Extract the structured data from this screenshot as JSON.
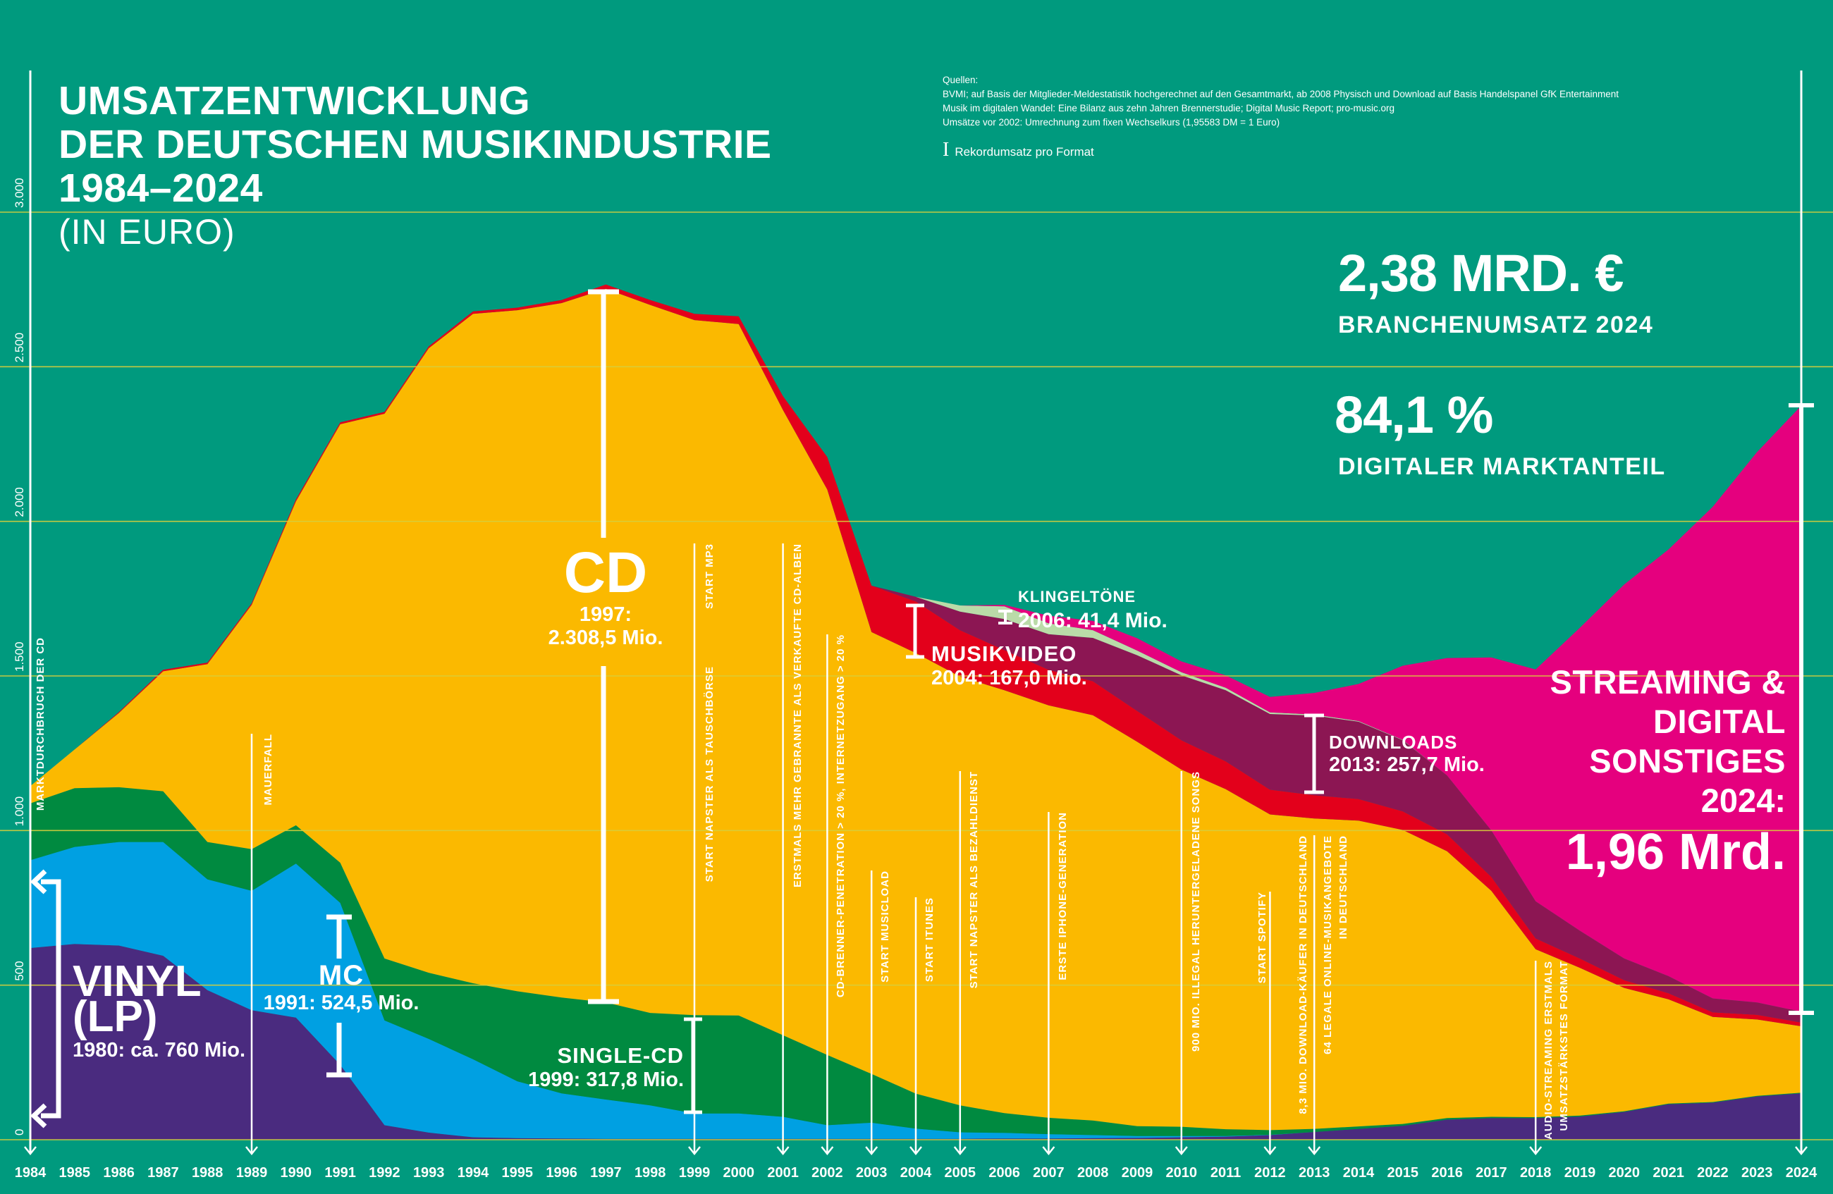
{
  "title": {
    "line1": "UMSATZENTWICKLUNG",
    "line2": "DER DEUTSCHEN MUSIKINDUSTRIE",
    "line3": "1984–2024",
    "unit": "(IN EURO)"
  },
  "sources": {
    "heading": "Quellen:",
    "line1": "BVMI; auf Basis der Mitglieder-Meldestatistik hochgerechnet auf den Gesamtmarkt, ab 2008 Physisch und Download auf Basis Handelspanel GfK Entertainment",
    "line2": "Musik im digitalen Wandel: Eine Bilanz aus zehn Jahren Brennerstudie; Digital Music Report; pro-music.org",
    "line3": "Umsätze vor 2002: Umrechnung zum fixen Wechselkurs (1,95583 DM = 1 Euro)"
  },
  "legend": {
    "record_label": "Rekordumsatz pro Format"
  },
  "kpis": {
    "revenue_value": "2,38 MRD. €",
    "revenue_label": "BRANCHENUMSATZ 2024",
    "digital_share_value": "84,1 %",
    "digital_share_label": "DIGITALER MARKTANTEIL"
  },
  "annotations": {
    "vinyl": "1980: ca. 760 Mio.",
    "mc": "1991: 524,5 Mio.",
    "single": "1999: 317,8 Mio.",
    "cd_year": "1997:",
    "cd_value": "2.308,5 Mio.",
    "video": "2004: 167,0 Mio.",
    "ringtones": "2006: 41,4 Mio.",
    "downloads": "2013: 257,7 Mio.",
    "streaming_year": "2024:",
    "streaming_value": "1,96 Mrd."
  },
  "events": [
    {
      "year": 1984,
      "text": "MARKTDURCHBRUCH DER CD"
    },
    {
      "year": 1989,
      "text": "MAUERFALL"
    },
    {
      "year": 1999,
      "text": "START MP3"
    },
    {
      "year": 1999,
      "text": "START NAPSTER ALS TAUSCHBÖRSE"
    },
    {
      "year": 2001,
      "text": "ERSTMALS MEHR GEBRANNTE ALS VERKAUFTE CD-ALBEN"
    },
    {
      "year": 2002,
      "text": "CD-BRENNER-PENETRATION > 20 %, INTERNETZUGANG > 20 %"
    },
    {
      "year": 2003,
      "text": "START MUSICLOAD"
    },
    {
      "year": 2004,
      "text": "START ITUNES"
    },
    {
      "year": 2005,
      "text": "START NAPSTER ALS BEZAHLDIENST"
    },
    {
      "year": 2007,
      "text": "ERSTE IPHONE-GENERATION"
    },
    {
      "year": 2010,
      "text": "900 MIO. ILLEGAL HERUNTERGELADENE SONGS"
    },
    {
      "year": 2012,
      "text": "START SPOTIFY"
    },
    {
      "year": 2013,
      "text": "8,3 MIO. DOWNLOAD-KÄUFER IN DEUTSCHLAND"
    },
    {
      "year": 2013,
      "text": "64 LEGALE ONLINE-MUSIKANGEBOTE",
      "text2": "IN DEUTSCHLAND"
    },
    {
      "year": 2018,
      "text": "AUDIO-STREAMING ERSTMALS",
      "text2": "UMSATZSTÄRKSTES FORMAT"
    }
  ],
  "chart_data": {
    "type": "area",
    "stacked": true,
    "title": "UMSATZENTWICKLUNG DER DEUTSCHEN MUSIKINDUSTRIE 1984–2024 (IN EURO)",
    "xlabel": "",
    "ylabel": "",
    "ylim": [
      0,
      3000
    ],
    "grid": true,
    "yticks": [
      {
        "value": 0,
        "label": "0"
      },
      {
        "value": 500,
        "label": "500"
      },
      {
        "value": 1000,
        "label": "1.000"
      },
      {
        "value": 1500,
        "label": "1.500"
      },
      {
        "value": 2000,
        "label": "2.000"
      },
      {
        "value": 2500,
        "label": "2.500"
      },
      {
        "value": 3000,
        "label": "3.000"
      }
    ],
    "x": [
      1984,
      1985,
      1986,
      1987,
      1988,
      1989,
      1990,
      1991,
      1992,
      1993,
      1994,
      1995,
      1996,
      1997,
      1998,
      1999,
      2000,
      2001,
      2002,
      2003,
      2004,
      2005,
      2006,
      2007,
      2008,
      2009,
      2010,
      2011,
      2012,
      2013,
      2014,
      2015,
      2016,
      2017,
      2018,
      2019,
      2020,
      2021,
      2022,
      2023,
      2024
    ],
    "series": [
      {
        "name": "VINYL (LP)",
        "color": "#4a2b7f",
        "values": [
          620,
          633,
          628,
          595,
          484,
          419,
          395,
          242,
          47,
          23,
          8,
          5,
          4,
          3,
          3,
          3,
          3,
          3,
          3,
          3,
          3,
          3,
          4,
          4,
          5,
          6,
          8,
          10,
          15,
          25,
          35,
          45,
          65,
          70,
          70,
          75,
          90,
          115,
          120,
          140,
          150
        ]
      },
      {
        "name": "MC",
        "color": "#00a0e2",
        "values": [
          284,
          314,
          335,
          368,
          358,
          386,
          498,
          524,
          339,
          303,
          252,
          184,
          146,
          127,
          108,
          82,
          82,
          71,
          44,
          52,
          33,
          21,
          18,
          14,
          10,
          6,
          4,
          2,
          1,
          0,
          0,
          0,
          0,
          0,
          0,
          0,
          0,
          0,
          0,
          0,
          0
        ]
      },
      {
        "name": "SINGLE-CD",
        "color": "#008a40",
        "values": [
          184,
          190,
          177,
          164,
          121,
          135,
          124,
          130,
          200,
          214,
          246,
          291,
          310,
          314,
          299,
          318,
          317,
          264,
          227,
          158,
          113,
          87,
          64,
          53,
          47,
          32,
          30,
          22,
          15,
          10,
          8,
          6,
          5,
          4,
          3,
          3,
          2,
          2,
          2,
          2,
          2
        ]
      },
      {
        "name": "CD",
        "color": "#fbb900",
        "values": [
          56,
          125,
          240,
          388,
          575,
          790,
          1048,
          1418,
          1762,
          2020,
          2165,
          2203,
          2246,
          2308,
          2290,
          2248,
          2236,
          2022,
          1829,
          1429,
          1425,
          1387,
          1368,
          1334,
          1311,
          1243,
          1155,
          1100,
          1021,
          1004,
          989,
          951,
          863,
          731,
          543,
          478,
          399,
          337,
          275,
          247,
          215
        ]
      },
      {
        "name": "MUSIKVIDEO",
        "color": "#e3001b",
        "values": [
          0,
          0,
          3,
          5,
          5,
          5,
          6,
          6,
          6,
          6,
          8,
          8,
          10,
          14,
          16,
          20,
          25,
          45,
          105,
          150,
          167,
          150,
          130,
          115,
          110,
          100,
          95,
          90,
          80,
          75,
          70,
          60,
          55,
          45,
          35,
          30,
          25,
          20,
          15,
          15,
          12
        ]
      },
      {
        "name": "DOWNLOADS",
        "color": "#8c1653",
        "values": [
          0,
          0,
          0,
          0,
          0,
          0,
          0,
          0,
          0,
          0,
          0,
          0,
          0,
          0,
          0,
          0,
          0,
          0,
          0,
          0,
          15,
          60,
          100,
          115,
          140,
          180,
          210,
          230,
          245,
          258,
          250,
          230,
          190,
          150,
          120,
          90,
          70,
          55,
          45,
          40,
          35
        ]
      },
      {
        "name": "KLINGELTÖNE",
        "color": "#badba8",
        "values": [
          0,
          0,
          0,
          0,
          0,
          0,
          0,
          0,
          0,
          0,
          0,
          0,
          0,
          0,
          0,
          0,
          0,
          0,
          0,
          0,
          0,
          20,
          41,
          35,
          25,
          15,
          10,
          8,
          5,
          3,
          2,
          1,
          0,
          0,
          0,
          0,
          0,
          0,
          0,
          0,
          0
        ]
      },
      {
        "name": "STREAMING & DIGITAL SONSTIGES",
        "color": "#e5007e",
        "values": [
          0,
          0,
          0,
          0,
          0,
          0,
          0,
          0,
          0,
          0,
          0,
          0,
          0,
          0,
          0,
          0,
          0,
          0,
          0,
          0,
          0,
          0,
          5,
          25,
          30,
          40,
          35,
          40,
          50,
          70,
          120,
          240,
          380,
          560,
          750,
          980,
          1210,
          1380,
          1590,
          1780,
          1960
        ]
      }
    ],
    "grid_color": "#d7cf3c",
    "background": "#009a7e"
  }
}
